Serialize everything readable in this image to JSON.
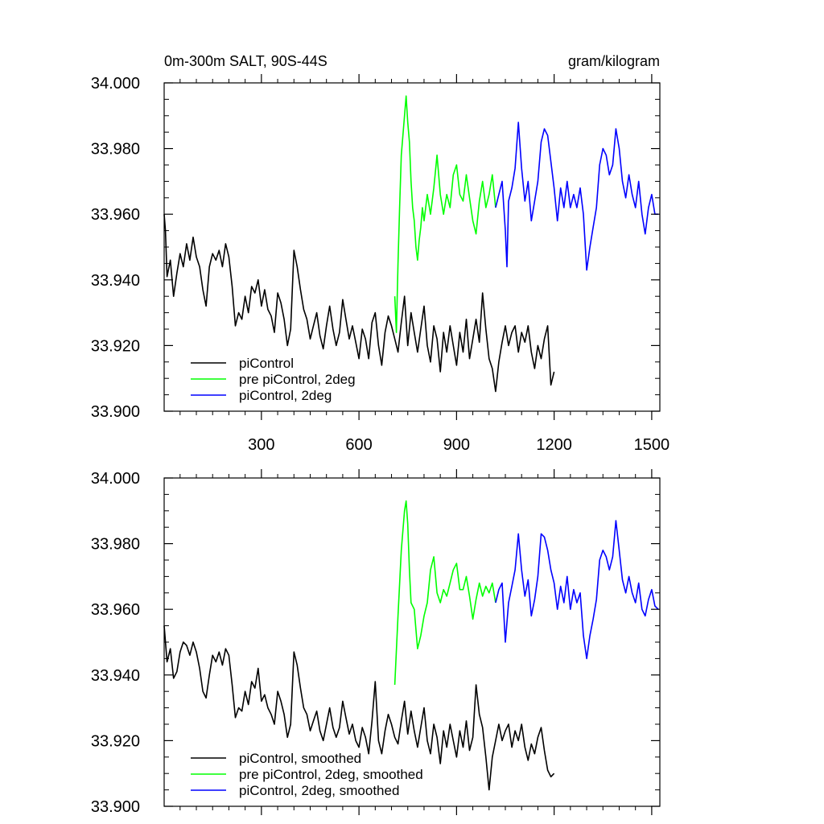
{
  "chart_data": [
    {
      "type": "line",
      "title_left": "0m-300m SALT, 90S-44S",
      "title_right": "gram/kilogram",
      "xlabel": "",
      "ylabel": "",
      "xlim": [
        1,
        1525
      ],
      "ylim": [
        33.9,
        34.0
      ],
      "x_tick_values": [
        300,
        600,
        900,
        1200,
        1500
      ],
      "x_tick_labels": [
        "300",
        "600",
        "900",
        "1200",
        "1500"
      ],
      "y_tick_values": [
        33.9,
        33.92,
        33.94,
        33.96,
        33.98,
        34.0
      ],
      "y_tick_labels": [
        "33.900",
        "33.920",
        "33.940",
        "33.960",
        "33.980",
        "34.000"
      ],
      "grid": false,
      "legend_position": "bottom-left",
      "series": [
        {
          "name": "piControl",
          "color": "#000000",
          "x": [
            1,
            5,
            10,
            20,
            30,
            40,
            50,
            60,
            70,
            80,
            90,
            100,
            110,
            120,
            130,
            140,
            150,
            160,
            170,
            180,
            190,
            200,
            210,
            220,
            230,
            240,
            250,
            260,
            270,
            280,
            290,
            300,
            310,
            320,
            330,
            340,
            350,
            360,
            370,
            380,
            390,
            400,
            410,
            420,
            430,
            440,
            450,
            460,
            470,
            480,
            490,
            500,
            510,
            520,
            530,
            540,
            550,
            560,
            570,
            580,
            590,
            600,
            610,
            620,
            630,
            640,
            650,
            660,
            670,
            680,
            690,
            700,
            710,
            720,
            730,
            740,
            750,
            760,
            770,
            780,
            790,
            800,
            810,
            820,
            830,
            840,
            850,
            860,
            870,
            880,
            890,
            900,
            910,
            920,
            930,
            940,
            950,
            960,
            970,
            980,
            990,
            1000,
            1010,
            1020,
            1030,
            1040,
            1050,
            1060,
            1070,
            1080,
            1090,
            1100,
            1110,
            1120,
            1130,
            1140,
            1150,
            1160,
            1170,
            1180,
            1190,
            1200
          ],
          "y": [
            33.96,
            33.955,
            33.941,
            33.946,
            33.935,
            33.942,
            33.948,
            33.944,
            33.951,
            33.946,
            33.953,
            33.947,
            33.944,
            33.937,
            33.932,
            33.944,
            33.948,
            33.946,
            33.949,
            33.944,
            33.951,
            33.947,
            33.938,
            33.926,
            33.93,
            33.928,
            33.935,
            33.93,
            33.938,
            33.936,
            33.94,
            33.932,
            33.937,
            33.931,
            33.929,
            33.924,
            33.936,
            33.933,
            33.928,
            33.92,
            33.925,
            33.949,
            33.944,
            33.937,
            33.931,
            33.928,
            33.922,
            33.926,
            33.93,
            33.923,
            33.919,
            33.926,
            33.932,
            33.925,
            33.92,
            33.924,
            33.934,
            33.928,
            33.922,
            33.926,
            33.921,
            33.916,
            33.925,
            33.922,
            33.916,
            33.927,
            33.93,
            33.92,
            33.914,
            33.924,
            33.929,
            33.926,
            33.922,
            33.918,
            33.927,
            33.935,
            33.92,
            33.93,
            33.924,
            33.918,
            33.925,
            33.932,
            33.92,
            33.915,
            33.926,
            33.922,
            33.912,
            33.924,
            33.918,
            33.926,
            33.92,
            33.914,
            33.924,
            33.918,
            33.928,
            33.916,
            33.922,
            33.928,
            33.921,
            33.936,
            33.925,
            33.916,
            33.913,
            33.906,
            33.915,
            33.921,
            33.926,
            33.92,
            33.924,
            33.926,
            33.918,
            33.924,
            33.921,
            33.926,
            33.918,
            33.913,
            33.92,
            33.916,
            33.922,
            33.926,
            33.908,
            33.912
          ]
        },
        {
          "name": "pre piControl, 2deg",
          "color": "#00ff00",
          "x": [
            710,
            715,
            720,
            725,
            730,
            735,
            740,
            745,
            750,
            755,
            760,
            765,
            770,
            775,
            780,
            785,
            790,
            795,
            800,
            810,
            820,
            830,
            840,
            850,
            860,
            870,
            880,
            890,
            900,
            910,
            920,
            930,
            940,
            950,
            960,
            970,
            980,
            990,
            1000,
            1010,
            1020
          ],
          "y": [
            33.935,
            33.924,
            33.945,
            33.962,
            33.978,
            33.984,
            33.99,
            33.996,
            33.988,
            33.982,
            33.97,
            33.962,
            33.958,
            33.95,
            33.946,
            33.952,
            33.956,
            33.962,
            33.958,
            33.966,
            33.96,
            33.968,
            33.978,
            33.966,
            33.96,
            33.966,
            33.962,
            33.972,
            33.975,
            33.966,
            33.964,
            33.972,
            33.965,
            33.958,
            33.954,
            33.964,
            33.97,
            33.962,
            33.966,
            33.972,
            33.962
          ]
        },
        {
          "name": "piControl, 2deg",
          "color": "#0000ff",
          "x": [
            1020,
            1030,
            1040,
            1050,
            1055,
            1060,
            1070,
            1080,
            1090,
            1100,
            1110,
            1120,
            1130,
            1140,
            1150,
            1160,
            1170,
            1180,
            1190,
            1200,
            1210,
            1220,
            1230,
            1240,
            1250,
            1260,
            1270,
            1280,
            1290,
            1300,
            1310,
            1320,
            1330,
            1340,
            1350,
            1360,
            1370,
            1380,
            1390,
            1400,
            1410,
            1420,
            1430,
            1440,
            1450,
            1460,
            1470,
            1480,
            1490,
            1500,
            1510,
            1520
          ],
          "y": [
            33.962,
            33.966,
            33.97,
            33.955,
            33.944,
            33.964,
            33.968,
            33.974,
            33.988,
            33.974,
            33.964,
            33.97,
            33.958,
            33.964,
            33.97,
            33.982,
            33.986,
            33.984,
            33.976,
            33.968,
            33.958,
            33.968,
            33.962,
            33.97,
            33.962,
            33.966,
            33.962,
            33.968,
            33.96,
            33.943,
            33.95,
            33.956,
            33.962,
            33.975,
            33.98,
            33.978,
            33.972,
            33.975,
            33.986,
            33.98,
            33.97,
            33.965,
            33.972,
            33.966,
            33.962,
            33.97,
            33.96,
            33.954,
            33.962,
            33.966,
            33.96,
            33.96
          ]
        }
      ]
    },
    {
      "type": "line",
      "xlim": [
        1,
        1525
      ],
      "ylim": [
        33.9,
        34.0
      ],
      "x_tick_values": [
        300,
        600,
        900,
        1200,
        1500
      ],
      "x_tick_labels": [],
      "y_tick_values": [
        33.9,
        33.92,
        33.94,
        33.96,
        33.98,
        34.0
      ],
      "y_tick_labels": [
        "33.900",
        "33.920",
        "33.940",
        "33.960",
        "33.980",
        "34.000"
      ],
      "grid": false,
      "legend_position": "bottom-left",
      "series": [
        {
          "name": "piControl, smoothed",
          "color": "#000000",
          "x": [
            1,
            10,
            20,
            30,
            40,
            50,
            60,
            70,
            80,
            90,
            100,
            110,
            120,
            130,
            140,
            150,
            160,
            170,
            180,
            190,
            200,
            210,
            220,
            230,
            240,
            250,
            260,
            270,
            280,
            290,
            300,
            310,
            320,
            330,
            340,
            350,
            360,
            370,
            380,
            390,
            400,
            410,
            420,
            430,
            440,
            450,
            460,
            470,
            480,
            490,
            500,
            510,
            520,
            530,
            540,
            550,
            560,
            570,
            580,
            590,
            600,
            610,
            620,
            630,
            640,
            650,
            660,
            670,
            680,
            690,
            700,
            710,
            720,
            730,
            740,
            750,
            760,
            770,
            780,
            790,
            800,
            810,
            820,
            830,
            840,
            850,
            860,
            870,
            880,
            890,
            900,
            910,
            920,
            930,
            940,
            950,
            960,
            970,
            980,
            990,
            1000,
            1010,
            1020,
            1030,
            1040,
            1050,
            1060,
            1070,
            1080,
            1090,
            1100,
            1110,
            1120,
            1130,
            1140,
            1150,
            1160,
            1170,
            1180,
            1190,
            1200
          ],
          "y": [
            33.955,
            33.944,
            33.948,
            33.939,
            33.941,
            33.947,
            33.95,
            33.949,
            33.946,
            33.95,
            33.947,
            33.942,
            33.935,
            33.933,
            33.94,
            33.946,
            33.944,
            33.947,
            33.943,
            33.948,
            33.946,
            33.937,
            33.927,
            33.93,
            33.929,
            33.935,
            33.931,
            33.938,
            33.936,
            33.942,
            33.932,
            33.934,
            33.93,
            33.928,
            33.925,
            33.935,
            33.932,
            33.928,
            33.921,
            33.925,
            33.947,
            33.943,
            33.936,
            33.93,
            33.928,
            33.923,
            33.926,
            33.929,
            33.923,
            33.92,
            33.925,
            33.93,
            33.924,
            33.921,
            33.924,
            33.932,
            33.927,
            33.922,
            33.925,
            33.92,
            33.918,
            33.924,
            33.921,
            33.916,
            33.926,
            33.938,
            33.92,
            33.916,
            33.923,
            33.928,
            33.925,
            33.921,
            33.919,
            33.926,
            33.932,
            33.922,
            33.929,
            33.923,
            33.918,
            33.924,
            33.93,
            33.92,
            33.916,
            33.925,
            33.921,
            33.913,
            33.923,
            33.918,
            33.925,
            33.92,
            33.915,
            33.923,
            33.918,
            33.926,
            33.917,
            33.921,
            33.937,
            33.928,
            33.924,
            33.915,
            33.905,
            33.915,
            33.92,
            33.925,
            33.92,
            33.923,
            33.925,
            33.918,
            33.923,
            33.92,
            33.925,
            33.918,
            33.914,
            33.919,
            33.916,
            33.921,
            33.924,
            33.917,
            33.911,
            33.909,
            33.91
          ]
        },
        {
          "name": "pre piControl, 2deg, smoothed",
          "color": "#00ff00",
          "x": [
            710,
            720,
            730,
            740,
            745,
            750,
            755,
            760,
            770,
            780,
            790,
            800,
            810,
            820,
            830,
            840,
            850,
            860,
            870,
            880,
            890,
            900,
            910,
            920,
            930,
            940,
            950,
            960,
            970,
            980,
            990,
            1000,
            1010,
            1020
          ],
          "y": [
            33.937,
            33.958,
            33.978,
            33.99,
            33.993,
            33.986,
            33.972,
            33.962,
            33.96,
            33.948,
            33.952,
            33.958,
            33.962,
            33.972,
            33.976,
            33.965,
            33.962,
            33.966,
            33.964,
            33.968,
            33.972,
            33.974,
            33.966,
            33.966,
            33.97,
            33.964,
            33.957,
            33.963,
            33.968,
            33.964,
            33.967,
            33.965,
            33.968,
            33.962
          ]
        },
        {
          "name": "piControl, 2deg, smoothed",
          "color": "#0000ff",
          "x": [
            1020,
            1030,
            1040,
            1050,
            1060,
            1070,
            1080,
            1090,
            1100,
            1110,
            1120,
            1130,
            1140,
            1150,
            1160,
            1170,
            1180,
            1190,
            1200,
            1210,
            1220,
            1230,
            1240,
            1250,
            1260,
            1270,
            1280,
            1290,
            1300,
            1310,
            1320,
            1330,
            1340,
            1350,
            1360,
            1370,
            1380,
            1390,
            1400,
            1410,
            1420,
            1430,
            1440,
            1450,
            1460,
            1470,
            1480,
            1490,
            1500,
            1510,
            1520
          ],
          "y": [
            33.962,
            33.966,
            33.968,
            33.95,
            33.962,
            33.967,
            33.972,
            33.983,
            33.972,
            33.964,
            33.969,
            33.958,
            33.963,
            33.97,
            33.983,
            33.982,
            33.978,
            33.972,
            33.968,
            33.96,
            33.967,
            33.962,
            33.97,
            33.96,
            33.966,
            33.962,
            33.965,
            33.952,
            33.945,
            33.952,
            33.957,
            33.963,
            33.975,
            33.978,
            33.976,
            33.972,
            33.976,
            33.987,
            33.978,
            33.969,
            33.965,
            33.97,
            33.965,
            33.962,
            33.968,
            33.96,
            33.958,
            33.963,
            33.966,
            33.961,
            33.96
          ]
        }
      ]
    }
  ]
}
